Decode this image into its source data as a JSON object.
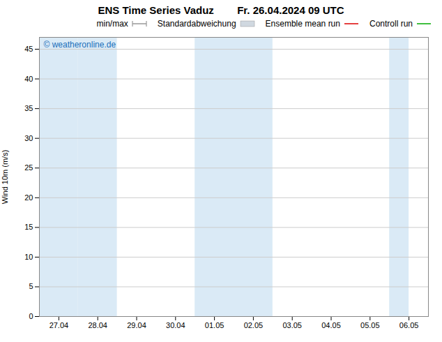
{
  "chart_data": {
    "type": "line",
    "title": "ENS Time Series Vaduz        Fr. 26.04.2024 09 UTC",
    "y_label": "Wind 10m (m/s)",
    "categories": [
      "27.04",
      "28.04",
      "29.04",
      "30.04",
      "01.05",
      "02.05",
      "03.05",
      "04.05",
      "05.05",
      "06.05"
    ],
    "series": [
      {
        "name": "min/max",
        "type": "errorbar",
        "color": "#999999",
        "values": [
          null,
          null,
          null,
          null,
          null,
          null,
          null,
          null,
          null,
          null
        ]
      },
      {
        "name": "Standardabweichung",
        "type": "area",
        "color": "#d0d8e0",
        "values": [
          null,
          null,
          null,
          null,
          null,
          null,
          null,
          null,
          null,
          null
        ]
      },
      {
        "name": "Ensemble mean run",
        "type": "line",
        "color": "#dd0000",
        "values": [
          null,
          null,
          null,
          null,
          null,
          null,
          null,
          null,
          null,
          null
        ]
      },
      {
        "name": "Controll run",
        "type": "line",
        "color": "#00aa00",
        "values": [
          null,
          null,
          null,
          null,
          null,
          null,
          null,
          null,
          null,
          null
        ]
      }
    ],
    "shaded_spans": [
      [
        0.0,
        1.0
      ],
      [
        1.0,
        2.0
      ],
      [
        4.0,
        5.0
      ],
      [
        5.0,
        6.0
      ],
      [
        9.0,
        9.5
      ]
    ],
    "shaded_color": "#daeaf6",
    "annotations": [
      {
        "text": "© weatheronline.de",
        "color": "#1a6fba"
      }
    ],
    "ylim": [
      0,
      47
    ],
    "yticks": [
      0,
      5,
      10,
      15,
      20,
      25,
      30,
      35,
      40,
      45
    ],
    "grid": true,
    "legend": "upper right"
  }
}
